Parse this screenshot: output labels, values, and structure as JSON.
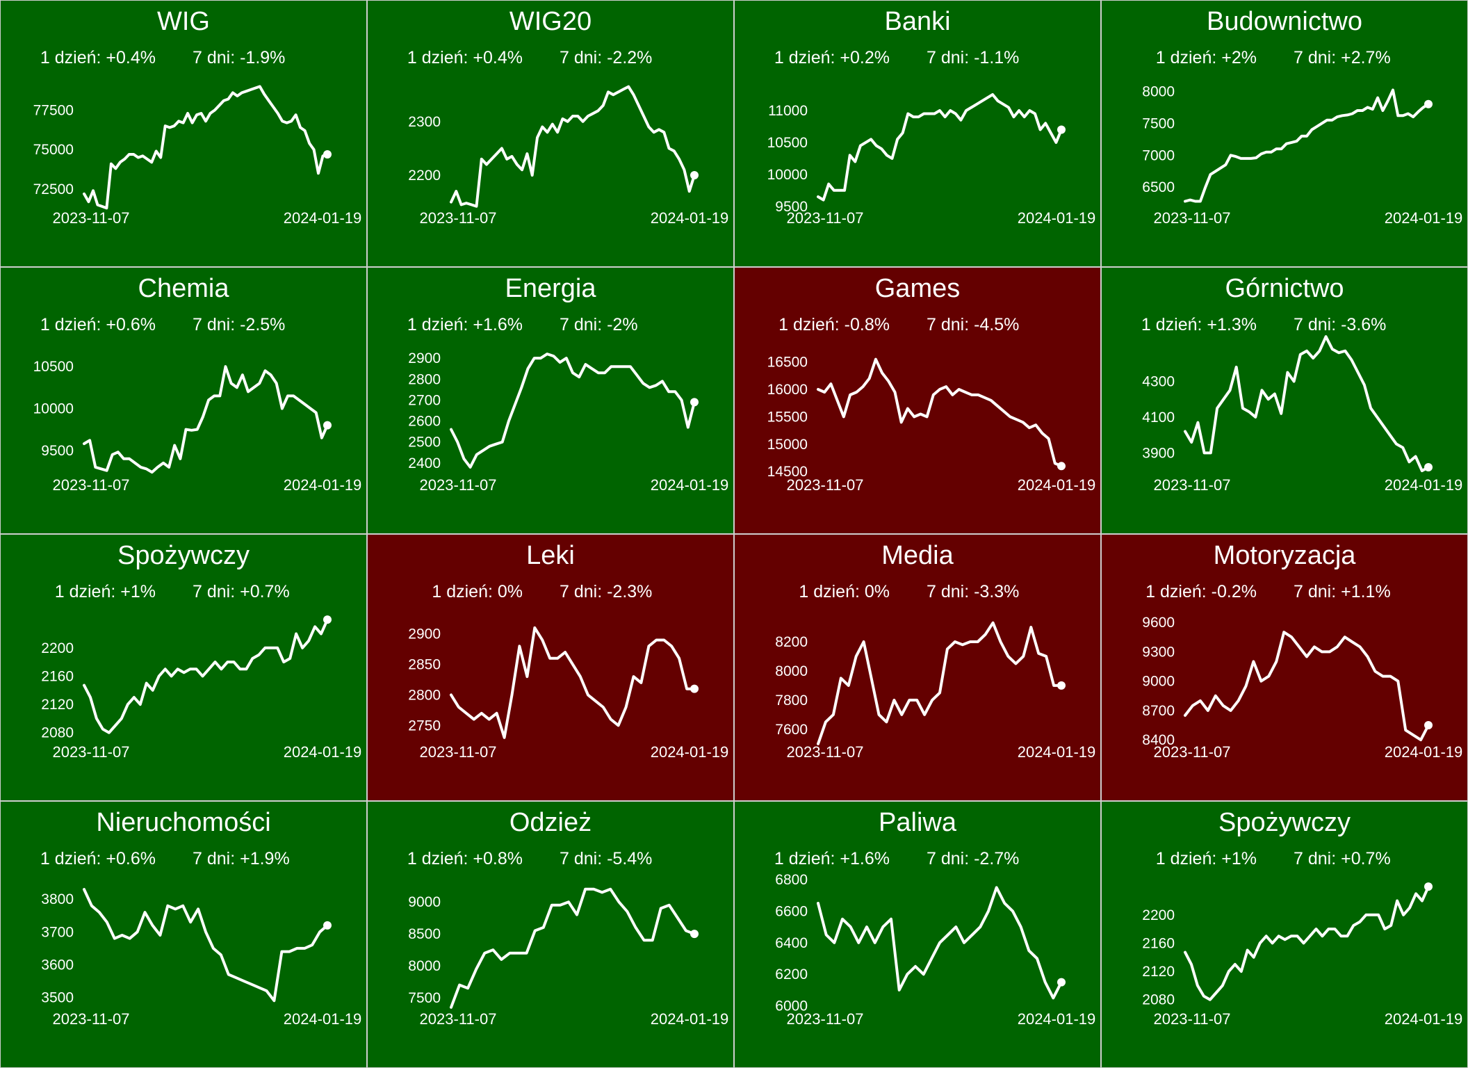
{
  "chart_data": [
    {
      "type": "line",
      "title": "WIG",
      "day": "1 dzień: +0.4%",
      "week": "7 dni: -1.9%",
      "trend": "up",
      "x_start": "2023-11-07",
      "x_end": "2024-01-19",
      "yticks": [
        "72500",
        "75000",
        "77500"
      ],
      "ylim": [
        71000,
        79500
      ],
      "values": [
        72200,
        71700,
        72400,
        71500,
        71400,
        71300,
        74100,
        73800,
        74200,
        74400,
        74700,
        74700,
        74500,
        74600,
        74400,
        74200,
        74900,
        74500,
        76500,
        76400,
        76500,
        76800,
        76700,
        77300,
        76700,
        77200,
        77300,
        76800,
        77300,
        77500,
        77800,
        78100,
        78200,
        78600,
        78400,
        78600,
        78700,
        78800,
        78900,
        79000,
        78500,
        78100,
        77700,
        77300,
        76800,
        76700,
        76800,
        77200,
        76400,
        76200,
        75400,
        75000,
        73500,
        74600,
        74700
      ]
    },
    {
      "type": "line",
      "title": "WIG20",
      "day": "1 dzień: +0.4%",
      "week": "7 dni: -2.2%",
      "trend": "up",
      "x_start": "2023-11-07",
      "x_end": "2024-01-19",
      "yticks": [
        "2200",
        "2300"
      ],
      "ylim": [
        2130,
        2380
      ],
      "values": [
        2150,
        2170,
        2145,
        2148,
        2145,
        2142,
        2230,
        2220,
        2230,
        2240,
        2250,
        2230,
        2235,
        2220,
        2210,
        2240,
        2200,
        2270,
        2290,
        2280,
        2295,
        2280,
        2305,
        2300,
        2310,
        2310,
        2300,
        2310,
        2315,
        2320,
        2330,
        2355,
        2350,
        2355,
        2360,
        2365,
        2350,
        2330,
        2310,
        2290,
        2280,
        2285,
        2280,
        2250,
        2245,
        2230,
        2210,
        2170,
        2200
      ]
    },
    {
      "type": "line",
      "title": "Banki",
      "day": "1 dzień: +0.2%",
      "week": "7 dni: -1.1%",
      "trend": "up",
      "x_start": "2023-11-07",
      "x_end": "2024-01-19",
      "yticks": [
        "9500",
        "10000",
        "10500",
        "11000"
      ],
      "ylim": [
        9400,
        11500
      ],
      "values": [
        9650,
        9600,
        9850,
        9750,
        9750,
        9750,
        10300,
        10200,
        10450,
        10500,
        10550,
        10450,
        10400,
        10300,
        10250,
        10550,
        10650,
        10950,
        10900,
        10900,
        10950,
        10950,
        10950,
        11000,
        10900,
        11000,
        10950,
        10850,
        11000,
        11050,
        11100,
        11150,
        11200,
        11250,
        11150,
        11100,
        11050,
        10900,
        11000,
        10900,
        11000,
        10950,
        10700,
        10800,
        10650,
        10500,
        10700
      ]
    },
    {
      "type": "line",
      "title": "Budownictwo",
      "day": "1 dzień: +2%",
      "week": "7 dni: +2.7%",
      "trend": "up",
      "x_start": "2023-11-07",
      "x_end": "2024-01-19",
      "yticks": [
        "6500",
        "7000",
        "7500",
        "8000"
      ],
      "ylim": [
        6100,
        8200
      ],
      "values": [
        6280,
        6300,
        6280,
        6280,
        6500,
        6700,
        6750,
        6800,
        6850,
        7000,
        6980,
        6950,
        6950,
        6950,
        6960,
        7020,
        7050,
        7050,
        7100,
        7100,
        7180,
        7200,
        7220,
        7300,
        7300,
        7400,
        7450,
        7500,
        7550,
        7550,
        7600,
        7620,
        7630,
        7650,
        7700,
        7700,
        7750,
        7720,
        7900,
        7700,
        7850,
        8020,
        7620,
        7620,
        7650,
        7600,
        7680,
        7750,
        7800
      ]
    },
    {
      "type": "line",
      "title": "Chemia",
      "day": "1 dzień: +0.6%",
      "week": "7 dni: -2.5%",
      "trend": "up",
      "x_start": "2023-11-07",
      "x_end": "2024-01-19",
      "yticks": [
        "9500",
        "10000",
        "10500"
      ],
      "ylim": [
        9150,
        10750
      ],
      "values": [
        9580,
        9620,
        9300,
        9280,
        9260,
        9450,
        9480,
        9400,
        9400,
        9350,
        9300,
        9280,
        9240,
        9300,
        9350,
        9300,
        9560,
        9400,
        9750,
        9740,
        9750,
        9900,
        10100,
        10150,
        10150,
        10500,
        10300,
        10250,
        10400,
        10200,
        10250,
        10300,
        10450,
        10400,
        10300,
        10000,
        10150,
        10150,
        10100,
        10050,
        10000,
        9950,
        9650,
        9800
      ]
    },
    {
      "type": "line",
      "title": "Energia",
      "day": "1 dzień: +1.6%",
      "week": "7 dni: -2%",
      "trend": "up",
      "x_start": "2023-11-07",
      "x_end": "2024-01-19",
      "yticks": [
        "2400",
        "2500",
        "2600",
        "2700",
        "2800",
        "2900"
      ],
      "ylim": [
        2320,
        2960
      ],
      "values": [
        2560,
        2500,
        2420,
        2380,
        2440,
        2460,
        2480,
        2490,
        2500,
        2600,
        2680,
        2760,
        2850,
        2900,
        2900,
        2920,
        2910,
        2880,
        2900,
        2830,
        2810,
        2870,
        2850,
        2830,
        2830,
        2860,
        2860,
        2860,
        2860,
        2820,
        2780,
        2760,
        2770,
        2790,
        2740,
        2740,
        2700,
        2570,
        2690
      ]
    },
    {
      "type": "line",
      "title": "Games",
      "day": "1 dzień: -0.8%",
      "week": "7 dni: -4.5%",
      "trend": "down",
      "x_start": "2023-11-07",
      "x_end": "2024-01-19",
      "yticks": [
        "14500",
        "15000",
        "15500",
        "16000",
        "16500"
      ],
      "ylim": [
        14350,
        16800
      ],
      "values": [
        16000,
        15950,
        16100,
        15800,
        15500,
        15900,
        15950,
        16050,
        16200,
        16550,
        16300,
        16150,
        15950,
        15400,
        15650,
        15500,
        15550,
        15500,
        15900,
        16000,
        16050,
        15900,
        16000,
        15950,
        15900,
        15900,
        15850,
        15800,
        15700,
        15600,
        15500,
        15450,
        15400,
        15300,
        15350,
        15200,
        15100,
        14650,
        14600
      ]
    },
    {
      "type": "line",
      "title": "Górnictwo",
      "day": "1 dzień: +1.3%",
      "week": "7 dni: -3.6%",
      "trend": "up",
      "x_start": "2023-11-07",
      "x_end": "2024-01-19",
      "yticks": [
        "3900",
        "4100",
        "4300"
      ],
      "ylim": [
        3750,
        4500
      ],
      "values": [
        4020,
        3960,
        4070,
        3900,
        3900,
        4150,
        4200,
        4250,
        4380,
        4150,
        4130,
        4100,
        4250,
        4200,
        4230,
        4120,
        4350,
        4300,
        4450,
        4470,
        4430,
        4470,
        4550,
        4480,
        4460,
        4470,
        4420,
        4350,
        4280,
        4150,
        4100,
        4050,
        4000,
        3950,
        3930,
        3850,
        3880,
        3800,
        3820
      ]
    },
    {
      "type": "line",
      "title": "Spożywczy",
      "day": "1 dzień: +1%",
      "week": "7 dni: +0.7%",
      "trend": "up",
      "x_start": "2023-11-07",
      "x_end": "2024-01-19",
      "yticks": [
        "2080",
        "2120",
        "2160",
        "2200"
      ],
      "ylim": [
        2060,
        2250
      ],
      "values": [
        2147,
        2130,
        2100,
        2085,
        2080,
        2090,
        2100,
        2120,
        2130,
        2120,
        2150,
        2140,
        2160,
        2170,
        2160,
        2170,
        2165,
        2170,
        2170,
        2160,
        2170,
        2180,
        2170,
        2180,
        2180,
        2170,
        2170,
        2185,
        2190,
        2200,
        2200,
        2200,
        2180,
        2185,
        2220,
        2200,
        2210,
        2230,
        2220,
        2240
      ]
    },
    {
      "type": "line",
      "title": "Leki",
      "day": "1 dzień: 0%",
      "week": "7 dni: -2.3%",
      "trend": "down",
      "x_start": "2023-11-07",
      "x_end": "2024-01-19",
      "yticks": [
        "2750",
        "2800",
        "2850",
        "2900"
      ],
      "ylim": [
        2715,
        2935
      ],
      "values": [
        2800,
        2780,
        2770,
        2760,
        2770,
        2760,
        2770,
        2730,
        2800,
        2880,
        2830,
        2910,
        2890,
        2860,
        2860,
        2870,
        2850,
        2830,
        2800,
        2790,
        2780,
        2760,
        2750,
        2780,
        2830,
        2820,
        2880,
        2890,
        2890,
        2880,
        2860,
        2810,
        2810
      ]
    },
    {
      "type": "line",
      "title": "Media",
      "day": "1 dzień: 0%",
      "week": "7 dni: -3.3%",
      "trend": "down",
      "x_start": "2023-11-07",
      "x_end": "2024-01-19",
      "yticks": [
        "7600",
        "7800",
        "8000",
        "8200"
      ],
      "ylim": [
        7480,
        8400
      ],
      "values": [
        7500,
        7650,
        7700,
        7950,
        7900,
        8100,
        8200,
        7950,
        7700,
        7650,
        7800,
        7700,
        7800,
        7800,
        7700,
        7800,
        7850,
        8150,
        8200,
        8180,
        8200,
        8200,
        8250,
        8330,
        8200,
        8100,
        8050,
        8100,
        8300,
        8120,
        8100,
        7900,
        7900
      ]
    },
    {
      "type": "line",
      "title": "Motoryzacja",
      "day": "1 dzień: -0.2%",
      "week": "7 dni: +1.1%",
      "trend": "down",
      "x_start": "2023-11-07",
      "x_end": "2024-01-19",
      "yticks": [
        "8400",
        "8700",
        "9000",
        "9300",
        "9600"
      ],
      "ylim": [
        8330,
        9700
      ],
      "values": [
        8650,
        8750,
        8800,
        8700,
        8850,
        8750,
        8700,
        8800,
        8950,
        9200,
        9000,
        9050,
        9200,
        9500,
        9450,
        9350,
        9250,
        9350,
        9300,
        9300,
        9350,
        9450,
        9400,
        9350,
        9250,
        9100,
        9050,
        9050,
        9000,
        8500,
        8450,
        8400,
        8550
      ]
    },
    {
      "type": "line",
      "title": "Nieruchomości",
      "day": "1 dzień: +0.6%",
      "week": "7 dni: +1.9%",
      "trend": "up",
      "x_start": "2023-11-07",
      "x_end": "2024-01-19",
      "yticks": [
        "3500",
        "3600",
        "3700",
        "3800"
      ],
      "ylim": [
        3450,
        3860
      ],
      "values": [
        3830,
        3780,
        3760,
        3730,
        3680,
        3690,
        3680,
        3700,
        3760,
        3720,
        3690,
        3780,
        3770,
        3780,
        3730,
        3770,
        3700,
        3650,
        3630,
        3570,
        3560,
        3550,
        3540,
        3530,
        3520,
        3490,
        3640,
        3640,
        3650,
        3650,
        3660,
        3700,
        3720
      ]
    },
    {
      "type": "line",
      "title": "Odzież",
      "day": "1 dzień: +0.8%",
      "week": "7 dni: -5.4%",
      "trend": "up",
      "x_start": "2023-11-07",
      "x_end": "2024-01-19",
      "yticks": [
        "7500",
        "8000",
        "8500",
        "9000"
      ],
      "ylim": [
        7250,
        9350
      ],
      "values": [
        7350,
        7700,
        7650,
        7950,
        8200,
        8250,
        8100,
        8200,
        8200,
        8200,
        8550,
        8600,
        8950,
        8950,
        9000,
        8800,
        9200,
        9200,
        9150,
        9200,
        9000,
        8850,
        8600,
        8400,
        8400,
        8900,
        8950,
        8750,
        8550,
        8500
      ]
    },
    {
      "type": "line",
      "title": "Paliwa",
      "day": "1 dzień: +1.6%",
      "week": "7 dni: -2.7%",
      "trend": "up",
      "x_start": "2023-11-07",
      "x_end": "2024-01-19",
      "yticks": [
        "6000",
        "6200",
        "6400",
        "6600",
        "6800"
      ],
      "ylim": [
        5950,
        6800
      ],
      "values": [
        6650,
        6450,
        6400,
        6550,
        6500,
        6400,
        6500,
        6400,
        6500,
        6550,
        6100,
        6200,
        6250,
        6200,
        6300,
        6400,
        6450,
        6500,
        6400,
        6450,
        6500,
        6600,
        6750,
        6650,
        6600,
        6500,
        6350,
        6300,
        6150,
        6050,
        6150
      ]
    },
    {
      "type": "line",
      "title": "Spożywczy",
      "day": "1 dzień: +1%",
      "week": "7 dni: +0.7%",
      "trend": "up",
      "x_start": "2023-11-07",
      "x_end": "2024-01-19",
      "yticks": [
        "2080",
        "2120",
        "2160",
        "2200"
      ],
      "ylim": [
        2060,
        2250
      ],
      "values": [
        2147,
        2130,
        2100,
        2085,
        2080,
        2090,
        2100,
        2120,
        2130,
        2120,
        2150,
        2140,
        2160,
        2170,
        2160,
        2170,
        2165,
        2170,
        2170,
        2160,
        2170,
        2180,
        2170,
        2180,
        2180,
        2170,
        2170,
        2185,
        2190,
        2200,
        2200,
        2200,
        2180,
        2185,
        2220,
        2200,
        2210,
        2230,
        2220,
        2240
      ]
    }
  ],
  "colors": {
    "up": "#006400",
    "down": "#640000",
    "line": "#ffffff"
  }
}
